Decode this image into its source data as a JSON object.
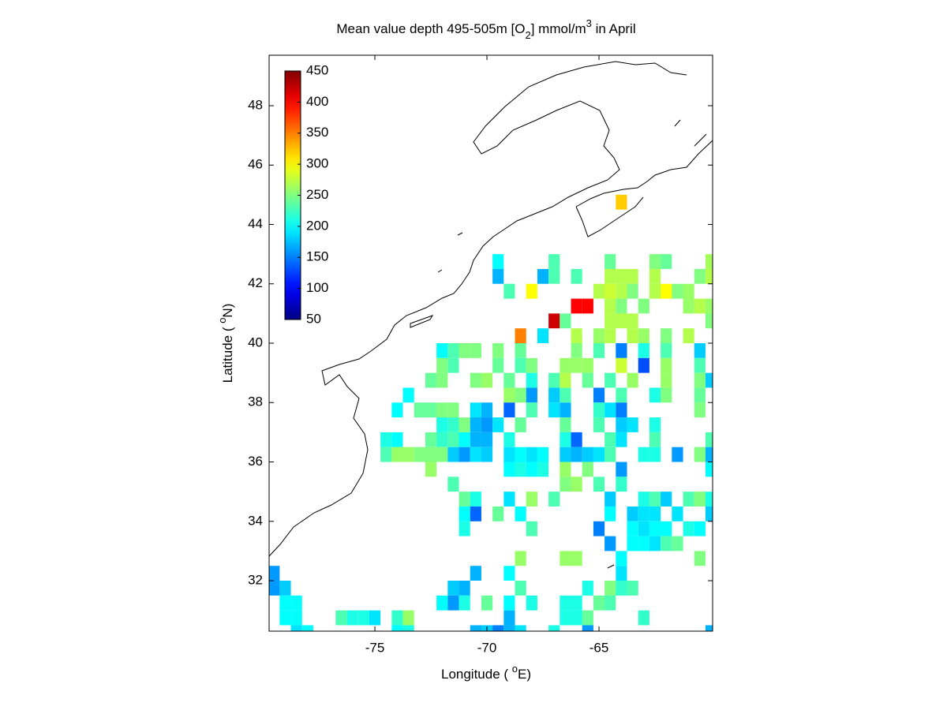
{
  "chart_data": {
    "type": "heatmap",
    "title": [
      "Mean value depth 495-505m [O",
      "2",
      "] mmol/m",
      "3",
      " in April"
    ],
    "xlabel": [
      "Longitude ( ",
      "o",
      "E)"
    ],
    "ylabel": [
      "Latitude ( ",
      "o",
      "N)"
    ],
    "xlim": [
      -79.72,
      -59.93
    ],
    "ylim": [
      30.3,
      49.7
    ],
    "xticks": [
      -75,
      -70,
      -65
    ],
    "yticks": [
      32,
      34,
      36,
      38,
      40,
      42,
      44,
      46,
      48
    ],
    "clim": [
      50,
      450
    ],
    "cticks": [
      50,
      100,
      150,
      200,
      250,
      300,
      350,
      400,
      450
    ],
    "colormap": "jet",
    "cell_size": 0.5,
    "rows": [
      {
        "lat": 44.75,
        "lon": [
          -64.0
        ],
        "values": [
          320
        ]
      },
      {
        "lat": 42.75,
        "lon": [
          -69.5,
          -67.0,
          -64.5,
          -62.5,
          -62.0,
          -60.0
        ],
        "values": [
          200,
          230,
          240,
          250,
          240,
          265
        ]
      },
      {
        "lat": 42.25,
        "lon": [
          -69.5,
          -67.5,
          -67.0,
          -66.0,
          -64.5,
          -64.0,
          -63.5,
          -62.5,
          -60.5,
          -60.0
        ],
        "values": [
          170,
          170,
          230,
          230,
          270,
          270,
          270,
          270,
          250,
          270
        ]
      },
      {
        "lat": 41.75,
        "lon": [
          -69.0,
          -68.0,
          -65.0,
          -64.5,
          -64.0,
          -63.5,
          -62.5,
          -62.0,
          -61.5,
          -61.0
        ],
        "values": [
          230,
          300,
          270,
          280,
          270,
          250,
          270,
          300,
          250,
          260
        ]
      },
      {
        "lat": 41.25,
        "lon": [
          -66.0,
          -65.5,
          -64.5,
          -64.0,
          -63.0,
          -61.0,
          -60.5,
          -60.0
        ],
        "values": [
          400,
          400,
          270,
          250,
          250,
          260,
          270,
          260
        ]
      },
      {
        "lat": 40.75,
        "lon": [
          -67.0,
          -66.5,
          -64.5,
          -64.0,
          -63.5,
          -60.0
        ],
        "values": [
          420,
          240,
          270,
          270,
          270,
          250
        ]
      },
      {
        "lat": 40.25,
        "lon": [
          -68.5,
          -67.5,
          -66.0,
          -65.0,
          -64.5,
          -63.5,
          -63.0,
          -62.0,
          -61.0
        ],
        "values": [
          350,
          190,
          270,
          260,
          270,
          270,
          260,
          250,
          270
        ]
      },
      {
        "lat": 39.75,
        "lon": [
          -72.0,
          -71.5,
          -71.0,
          -70.5,
          -69.5,
          -68.5,
          -66.0,
          -65.0,
          -64.0,
          -63.0,
          -62.0,
          -60.5
        ],
        "values": [
          200,
          230,
          250,
          250,
          250,
          240,
          250,
          230,
          150,
          210,
          230,
          180
        ]
      },
      {
        "lat": 39.25,
        "lon": [
          -72.0,
          -71.5,
          -69.5,
          -68.5,
          -68.0,
          -66.5,
          -66.0,
          -65.5,
          -64.0,
          -63.0,
          -62.0,
          -60.5
        ],
        "values": [
          250,
          230,
          240,
          230,
          250,
          260,
          260,
          260,
          280,
          130,
          260,
          230
        ]
      },
      {
        "lat": 38.75,
        "lon": [
          -72.5,
          -72.0,
          -70.5,
          -70.0,
          -69.0,
          -68.0,
          -67.0,
          -66.5,
          -65.5,
          -64.5,
          -63.5,
          -62.0,
          -60.5,
          -60.0
        ],
        "values": [
          240,
          250,
          250,
          260,
          240,
          210,
          230,
          270,
          240,
          230,
          260,
          260,
          250,
          180
        ]
      },
      {
        "lat": 38.25,
        "lon": [
          -73.5,
          -69.0,
          -68.5,
          -68.0,
          -67.0,
          -66.5,
          -65.0,
          -64.0,
          -62.5,
          -62.0,
          -60.5
        ],
        "values": [
          200,
          260,
          250,
          160,
          180,
          230,
          150,
          230,
          210,
          250,
          240
        ]
      },
      {
        "lat": 37.75,
        "lon": [
          -74.0,
          -73.0,
          -72.5,
          -72.0,
          -71.5,
          -70.5,
          -70.0,
          -69.0,
          -68.0,
          -67.0,
          -66.5,
          -65.0,
          -64.5,
          -64.0,
          -60.5
        ],
        "values": [
          200,
          240,
          240,
          250,
          250,
          190,
          170,
          140,
          230,
          190,
          170,
          220,
          190,
          150,
          250
        ]
      },
      {
        "lat": 37.25,
        "lon": [
          -72.0,
          -71.5,
          -71.0,
          -70.5,
          -70.0,
          -69.5,
          -68.5,
          -66.5,
          -65.0,
          -64.0,
          -63.5,
          -62.5
        ],
        "values": [
          210,
          220,
          250,
          170,
          160,
          190,
          240,
          240,
          230,
          180,
          190,
          210
        ]
      },
      {
        "lat": 36.75,
        "lon": [
          -74.5,
          -74.0,
          -72.5,
          -72.0,
          -71.5,
          -71.0,
          -70.5,
          -70.0,
          -69.0,
          -66.5,
          -66.0,
          -64.5,
          -64.0,
          -62.5,
          -60.0
        ],
        "values": [
          210,
          200,
          240,
          220,
          230,
          200,
          170,
          170,
          210,
          210,
          140,
          230,
          190,
          230,
          230
        ]
      },
      {
        "lat": 36.25,
        "lon": [
          -74.5,
          -74.0,
          -73.5,
          -73.0,
          -72.5,
          -72.0,
          -71.5,
          -71.0,
          -70.5,
          -70.0,
          -69.0,
          -68.5,
          -68.0,
          -67.5,
          -66.5,
          -66.0,
          -65.5,
          -65.0,
          -64.5,
          -63.0,
          -62.5,
          -61.5,
          -60.5,
          -60.0
        ],
        "values": [
          230,
          260,
          260,
          250,
          250,
          250,
          180,
          160,
          190,
          180,
          190,
          200,
          190,
          200,
          180,
          170,
          180,
          190,
          230,
          210,
          210,
          160,
          250,
          170
        ]
      },
      {
        "lat": 35.75,
        "lon": [
          -72.5,
          -69.0,
          -68.5,
          -68.0,
          -67.5,
          -66.5,
          -65.5,
          -64.0,
          -60.0
        ],
        "values": [
          260,
          200,
          210,
          200,
          210,
          260,
          250,
          160,
          200
        ]
      },
      {
        "lat": 35.25,
        "lon": [
          -71.5,
          -66.5,
          -66.0,
          -65.0,
          -64.0
        ],
        "values": [
          230,
          250,
          260,
          230,
          220
        ]
      },
      {
        "lat": 34.75,
        "lon": [
          -71.0,
          -70.5,
          -69.0,
          -68.0,
          -67.0,
          -64.5,
          -63.0,
          -62.5,
          -62.0,
          -61.0,
          -60.5,
          -60.0
        ],
        "values": [
          240,
          210,
          190,
          260,
          230,
          180,
          210,
          230,
          180,
          230,
          250,
          210
        ]
      },
      {
        "lat": 34.25,
        "lon": [
          -71.0,
          -70.5,
          -69.5,
          -68.5,
          -64.5,
          -63.5,
          -63.0,
          -62.5,
          -61.5,
          -60.0
        ],
        "values": [
          200,
          140,
          240,
          200,
          200,
          180,
          190,
          190,
          190,
          180
        ]
      },
      {
        "lat": 33.75,
        "lon": [
          -71.0,
          -68.0,
          -65.0,
          -63.5,
          -63.0,
          -62.5,
          -62.0,
          -61.0,
          -60.5
        ],
        "values": [
          210,
          230,
          150,
          200,
          190,
          200,
          200,
          210,
          200
        ]
      },
      {
        "lat": 33.25,
        "lon": [
          -64.5,
          -63.5,
          -63.0,
          -62.5,
          -62.0,
          -61.5
        ],
        "values": [
          160,
          200,
          200,
          190,
          230,
          240
        ]
      },
      {
        "lat": 32.75,
        "lon": [
          -68.5,
          -66.5,
          -66.0,
          -64.0,
          -60.5
        ],
        "values": [
          260,
          260,
          260,
          200,
          250
        ]
      },
      {
        "lat": 32.25,
        "lon": [
          -79.5,
          -70.5,
          -69.0,
          -64.0
        ],
        "values": [
          160,
          170,
          200,
          190
        ]
      },
      {
        "lat": 31.75,
        "lon": [
          -79.5,
          -79.0,
          -71.5,
          -71.0,
          -68.5,
          -65.5,
          -64.5,
          -64.0,
          -63.5
        ],
        "values": [
          160,
          180,
          180,
          170,
          230,
          210,
          250,
          220,
          230
        ]
      },
      {
        "lat": 31.25,
        "lon": [
          -79.0,
          -78.5,
          -72.0,
          -71.5,
          -71.0,
          -70.0,
          -69.0,
          -68.0,
          -66.5,
          -66.0,
          -65.0,
          -64.5
        ],
        "values": [
          200,
          200,
          200,
          160,
          210,
          240,
          200,
          210,
          210,
          210,
          240,
          230
        ]
      },
      {
        "lat": 30.75,
        "lon": [
          -79.0,
          -78.5,
          -76.5,
          -76.0,
          -75.5,
          -75.0,
          -74.0,
          -73.5,
          -69.0,
          -66.5,
          -66.0,
          -65.5,
          -63.0
        ],
        "values": [
          200,
          200,
          230,
          210,
          210,
          190,
          220,
          260,
          170,
          210,
          210,
          240,
          220
        ]
      },
      {
        "lat": 30.25,
        "lon": [
          -78.5,
          -78.0,
          -74.0,
          -73.5,
          -70.5,
          -70.0,
          -69.5,
          -69.0,
          -68.5,
          -67.0,
          -65.5,
          -60.0
        ],
        "values": [
          190,
          200,
          200,
          210,
          170,
          180,
          150,
          170,
          190,
          210,
          160,
          170
        ]
      }
    ]
  }
}
